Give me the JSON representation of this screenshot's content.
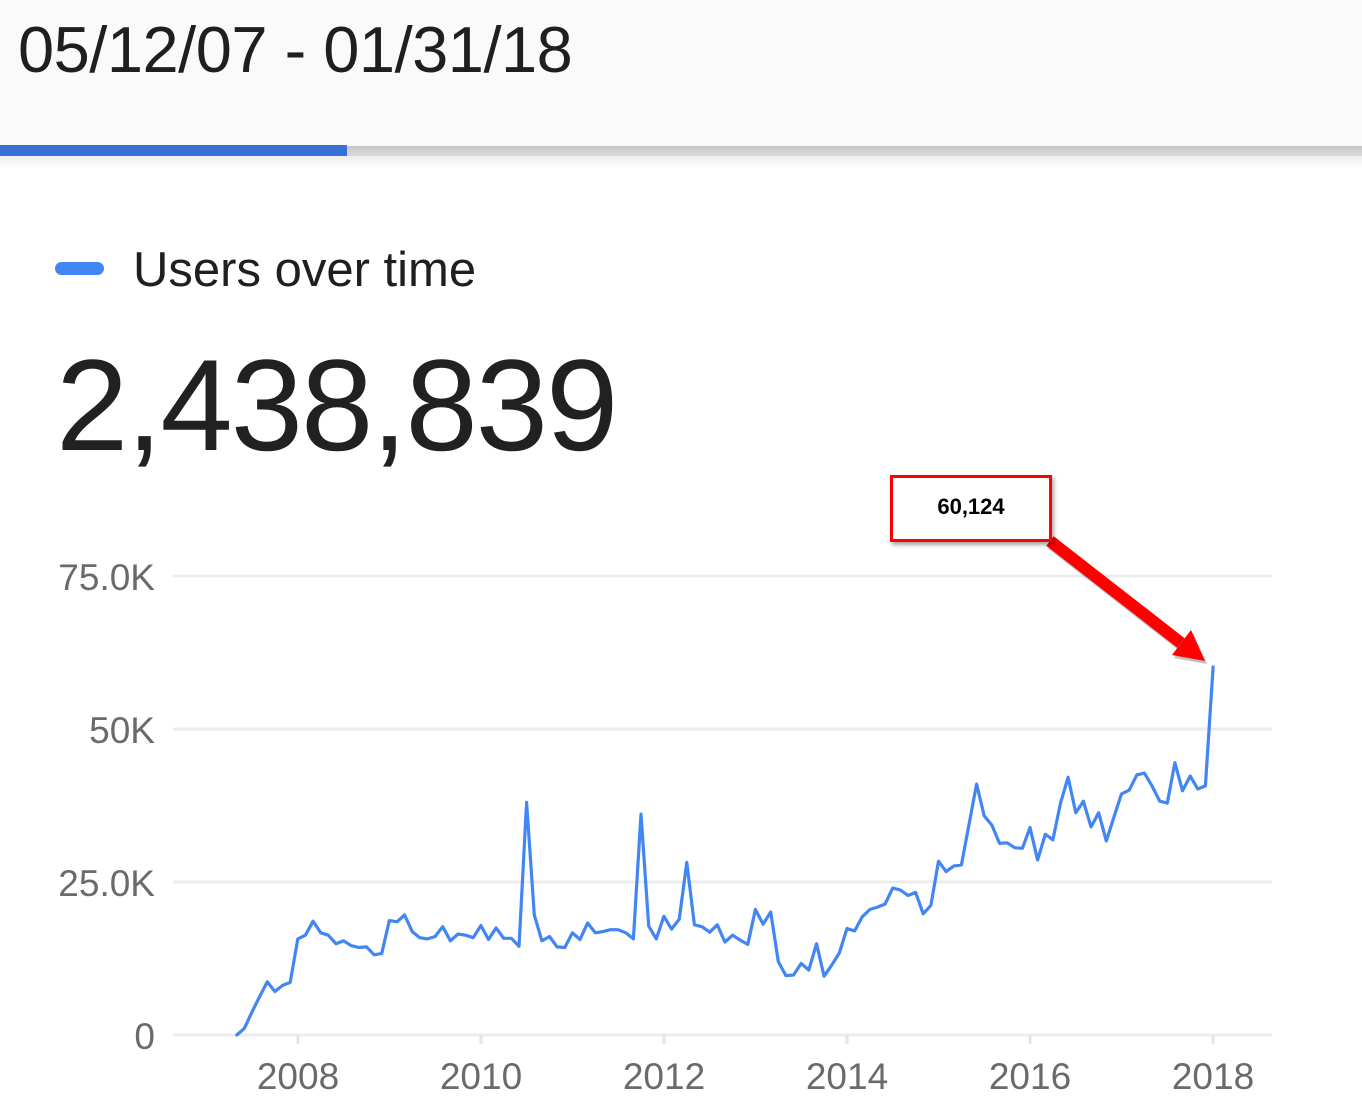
{
  "header": {
    "date_range": "05/12/07 - 01/31/18"
  },
  "tabs": {
    "active_indicator_color": "#3870d8",
    "track_color": "#d0d0d0"
  },
  "legend": {
    "label": "Users over time",
    "color": "#4285f4"
  },
  "metric": {
    "total_users": "2,438,839"
  },
  "annotation": {
    "label": "60,124",
    "border_color": "#ff0000",
    "arrow_color": "#ff0000"
  },
  "chart_data": {
    "type": "line",
    "title": "Users over time",
    "xlabel": "",
    "ylabel": "",
    "ylim": [
      0,
      75000
    ],
    "grid": true,
    "legend_position": "top-left",
    "x_interval": "month",
    "x_start": "2007-05",
    "x_end": "2018-01",
    "yticks": [
      {
        "label": "0",
        "value": 0
      },
      {
        "label": "25.0K",
        "value": 25000
      },
      {
        "label": "50K",
        "value": 50000
      },
      {
        "label": "75.0K",
        "value": 75000
      }
    ],
    "xticks": [
      {
        "label": "2008",
        "x": "2008-01"
      },
      {
        "label": "2010",
        "x": "2010-01"
      },
      {
        "label": "2012",
        "x": "2012-01"
      },
      {
        "label": "2014",
        "x": "2014-01"
      },
      {
        "label": "2016",
        "x": "2016-01"
      },
      {
        "label": "2018",
        "x": "2018-01"
      }
    ],
    "x": [
      "2007-05",
      "2007-06",
      "2007-07",
      "2007-08",
      "2007-09",
      "2007-10",
      "2007-11",
      "2007-12",
      "2008-01",
      "2008-02",
      "2008-03",
      "2008-04",
      "2008-05",
      "2008-06",
      "2008-07",
      "2008-08",
      "2008-09",
      "2008-10",
      "2008-11",
      "2008-12",
      "2009-01",
      "2009-02",
      "2009-03",
      "2009-04",
      "2009-05",
      "2009-06",
      "2009-07",
      "2009-08",
      "2009-09",
      "2009-10",
      "2009-11",
      "2009-12",
      "2010-01",
      "2010-02",
      "2010-03",
      "2010-04",
      "2010-05",
      "2010-06",
      "2010-07",
      "2010-08",
      "2010-09",
      "2010-10",
      "2010-11",
      "2010-12",
      "2011-01",
      "2011-02",
      "2011-03",
      "2011-04",
      "2011-05",
      "2011-06",
      "2011-07",
      "2011-08",
      "2011-09",
      "2011-10",
      "2011-11",
      "2011-12",
      "2012-01",
      "2012-02",
      "2012-03",
      "2012-04",
      "2012-05",
      "2012-06",
      "2012-07",
      "2012-08",
      "2012-09",
      "2012-10",
      "2012-11",
      "2012-12",
      "2013-01",
      "2013-02",
      "2013-03",
      "2013-04",
      "2013-05",
      "2013-06",
      "2013-07",
      "2013-08",
      "2013-09",
      "2013-10",
      "2013-11",
      "2013-12",
      "2014-01",
      "2014-02",
      "2014-03",
      "2014-04",
      "2014-05",
      "2014-06",
      "2014-07",
      "2014-08",
      "2014-09",
      "2014-10",
      "2014-11",
      "2014-12",
      "2015-01",
      "2015-02",
      "2015-03",
      "2015-04",
      "2015-05",
      "2015-06",
      "2015-07",
      "2015-08",
      "2015-09",
      "2015-10",
      "2015-11",
      "2015-12",
      "2016-01",
      "2016-02",
      "2016-03",
      "2016-04",
      "2016-05",
      "2016-06",
      "2016-07",
      "2016-08",
      "2016-09",
      "2016-10",
      "2016-11",
      "2016-12",
      "2017-01",
      "2017-02",
      "2017-03",
      "2017-04",
      "2017-05",
      "2017-06",
      "2017-07",
      "2017-08",
      "2017-09",
      "2017-10",
      "2017-11",
      "2017-12",
      "2018-01"
    ],
    "series": [
      {
        "name": "Users over time",
        "color": "#4285f4",
        "values": [
          0,
          1100,
          3800,
          6300,
          8700,
          7100,
          8100,
          8600,
          15700,
          16300,
          18600,
          16700,
          16300,
          14900,
          15400,
          14600,
          14300,
          14400,
          13100,
          13300,
          18700,
          18500,
          19600,
          16900,
          15900,
          15700,
          16100,
          17700,
          15400,
          16500,
          16300,
          15900,
          17900,
          15600,
          17500,
          15800,
          15800,
          14500,
          38000,
          19600,
          15400,
          16100,
          14400,
          14300,
          16700,
          15600,
          18300,
          16700,
          16900,
          17200,
          17200,
          16700,
          15700,
          36100,
          17800,
          15700,
          19400,
          17300,
          18900,
          28200,
          18000,
          17700,
          16800,
          18000,
          15200,
          16300,
          15500,
          14800,
          20500,
          18100,
          20100,
          12000,
          9700,
          9800,
          11700,
          10600,
          14900,
          9600,
          11400,
          13400,
          17400,
          17000,
          19300,
          20500,
          20900,
          21400,
          24000,
          23700,
          22800,
          23300,
          19800,
          21200,
          28400,
          26700,
          27600,
          27800,
          34400,
          41000,
          35800,
          34300,
          31300,
          31400,
          30600,
          30500,
          33900,
          28600,
          32800,
          31900,
          37900,
          42100,
          36300,
          38200,
          34000,
          36300,
          31700,
          35600,
          39400,
          40000,
          42500,
          42800,
          40700,
          38200,
          37900,
          44500,
          39900,
          42300,
          40200,
          40700,
          60124
        ]
      }
    ],
    "annotations": [
      {
        "text": "60,124",
        "x": "2018-01",
        "value": 60124,
        "style": "red callout box with arrow"
      }
    ]
  }
}
